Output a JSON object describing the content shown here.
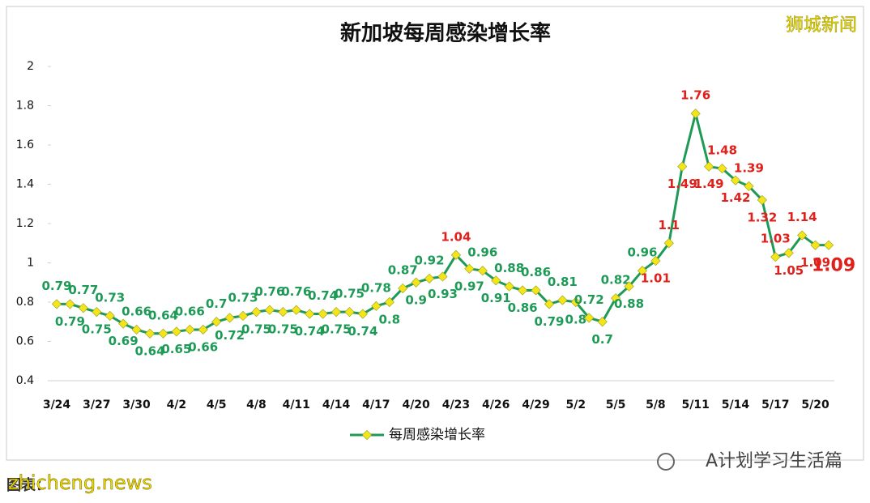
{
  "chart_data": {
    "type": "line",
    "title": "新加坡每周感染增长率",
    "categories": [
      "3/24",
      null,
      null,
      "3/27",
      null,
      null,
      "3/30",
      null,
      null,
      "4/2",
      null,
      null,
      "4/5",
      null,
      null,
      "4/8",
      null,
      null,
      "4/11",
      null,
      null,
      "4/14",
      null,
      null,
      "4/17",
      null,
      null,
      "4/20",
      null,
      null,
      "4/23",
      null,
      null,
      "4/26",
      null,
      null,
      "4/29",
      null,
      null,
      "5/2",
      null,
      null,
      "5/5",
      null,
      null,
      "5/8",
      null,
      null,
      "5/11",
      null,
      null,
      "5/14",
      null,
      null,
      "5/17",
      null,
      null,
      "5/20",
      null
    ],
    "series": [
      {
        "name": "每周感染增长率",
        "color": "#1e9a57",
        "marker_color": "#f2e51a",
        "values": [
          0.79,
          0.79,
          0.77,
          0.75,
          0.73,
          0.69,
          0.66,
          0.64,
          0.64,
          0.65,
          0.66,
          0.66,
          0.7,
          0.72,
          0.73,
          0.75,
          0.76,
          0.75,
          0.76,
          0.74,
          0.74,
          0.75,
          0.75,
          0.74,
          0.78,
          0.8,
          0.87,
          0.9,
          0.92,
          0.93,
          1.04,
          0.97,
          0.96,
          0.91,
          0.88,
          0.86,
          0.86,
          0.79,
          0.81,
          0.8,
          0.72,
          0.7,
          0.82,
          0.88,
          0.96,
          1.01,
          1.1,
          1.49,
          1.76,
          1.49,
          1.48,
          1.42,
          1.39,
          1.32,
          1.03,
          1.05,
          1.14,
          1.09,
          1.09
        ],
        "label_colors": [
          "#1e9a57",
          "#1e9a57",
          "#1e9a57",
          "#1e9a57",
          "#1e9a57",
          "#1e9a57",
          "#1e9a57",
          "#1e9a57",
          "#1e9a57",
          "#1e9a57",
          "#1e9a57",
          "#1e9a57",
          "#1e9a57",
          "#1e9a57",
          "#1e9a57",
          "#1e9a57",
          "#1e9a57",
          "#1e9a57",
          "#1e9a57",
          "#1e9a57",
          "#1e9a57",
          "#1e9a57",
          "#1e9a57",
          "#1e9a57",
          "#1e9a57",
          "#1e9a57",
          "#1e9a57",
          "#1e9a57",
          "#1e9a57",
          "#1e9a57",
          "#e0201b",
          "#1e9a57",
          "#1e9a57",
          "#1e9a57",
          "#1e9a57",
          "#1e9a57",
          "#1e9a57",
          "#1e9a57",
          "#1e9a57",
          "#1e9a57",
          "#1e9a57",
          "#1e9a57",
          "#1e9a57",
          "#1e9a57",
          "#1e9a57",
          "#e0201b",
          "#e0201b",
          "#e0201b",
          "#e0201b",
          "#e0201b",
          "#e0201b",
          "#e0201b",
          "#e0201b",
          "#e0201b",
          "#e0201b",
          "#e0201b",
          "#e0201b",
          "#e0201b",
          "#e0201b"
        ]
      }
    ],
    "ylim": [
      0.4,
      2
    ],
    "yticks": [
      0.4,
      0.6,
      0.8,
      1,
      1.2,
      1.4,
      1.6,
      1.8,
      2
    ],
    "legend": "bottom"
  },
  "brand": "狮城新闻",
  "wechat": "A计划学习生活篇",
  "website": "zhicheng.news",
  "source": "图表："
}
